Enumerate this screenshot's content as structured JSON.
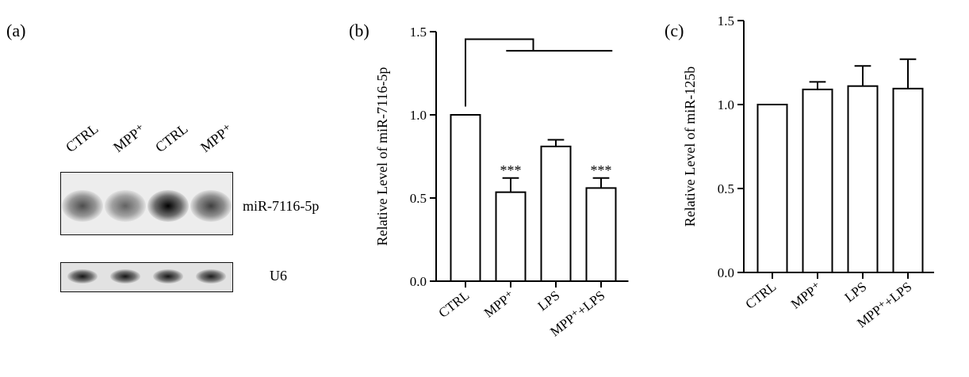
{
  "panels": {
    "a": {
      "letter": "(a)",
      "lanes": [
        "CTRL",
        "MPP⁺",
        "CTRL",
        "MPP⁺"
      ],
      "top_blot_label": "miR-7116-5p",
      "bottom_blot_label": "U6",
      "top_band_intensity": [
        0.45,
        0.3,
        1.0,
        0.55
      ],
      "bottom_band_intensity": [
        0.85,
        0.85,
        0.85,
        0.8
      ]
    },
    "b": {
      "letter": "(b)"
    },
    "c": {
      "letter": "(c)"
    }
  },
  "chart_data": [
    {
      "type": "bar",
      "panel": "b",
      "categories": [
        "CTRL",
        "MPP⁺",
        "LPS",
        "MPP⁺+LPS"
      ],
      "values": [
        1.0,
        0.535,
        0.81,
        0.56
      ],
      "errors": [
        0,
        0.085,
        0.04,
        0.06
      ],
      "annotations": [
        "",
        "***",
        "",
        "***"
      ],
      "ylabel": "Relative Level of miR-7116-5p",
      "ylim": [
        0,
        1.5
      ],
      "yticks": [
        "0.0",
        "0.5",
        "1.0",
        "1.5"
      ],
      "has_comparison_bracket": true
    },
    {
      "type": "bar",
      "panel": "c",
      "categories": [
        "CTRL",
        "MPP⁺",
        "LPS",
        "MPP⁺+LPS"
      ],
      "values": [
        1.0,
        1.09,
        1.11,
        1.095
      ],
      "errors": [
        0,
        0.045,
        0.12,
        0.175
      ],
      "annotations": [
        "",
        "",
        "",
        ""
      ],
      "ylabel": "Relative Level of miR-125b",
      "ylim": [
        0,
        1.5
      ],
      "yticks": [
        "0.0",
        "0.5",
        "1.0",
        "1.5"
      ],
      "has_comparison_bracket": false
    }
  ]
}
